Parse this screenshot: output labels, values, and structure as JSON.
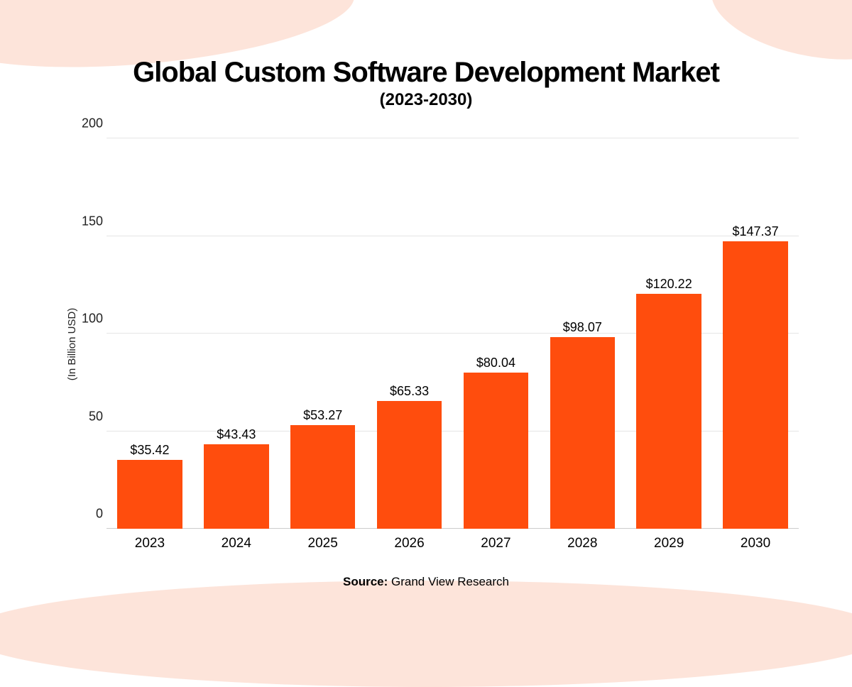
{
  "chart": {
    "type": "bar",
    "title": "Global Custom Software Development Market",
    "subtitle": "(2023-2030)",
    "y_axis_label": "(In Billion USD)",
    "categories": [
      "2023",
      "2024",
      "2025",
      "2026",
      "2027",
      "2028",
      "2029",
      "2030"
    ],
    "values": [
      35.42,
      43.43,
      53.27,
      65.33,
      80.04,
      98.07,
      120.22,
      147.37
    ],
    "value_labels": [
      "$35.42",
      "$43.43",
      "$53.27",
      "$65.33",
      "$80.04",
      "$98.07",
      "$120.22",
      "$147.37"
    ],
    "bar_color": "#ff4d0d",
    "ylim": [
      0,
      200
    ],
    "ytick_step": 50,
    "y_ticks": [
      "0",
      "50",
      "100",
      "150",
      "200"
    ],
    "grid_color": "#e5e5e5",
    "background_color": "#ffffff",
    "accent_bg_color": "#fde4da",
    "title_fontsize": 40,
    "subtitle_fontsize": 24,
    "label_fontsize": 18,
    "bar_width": 0.75
  },
  "source": {
    "label": "Source:",
    "text": "Grand View Research"
  }
}
